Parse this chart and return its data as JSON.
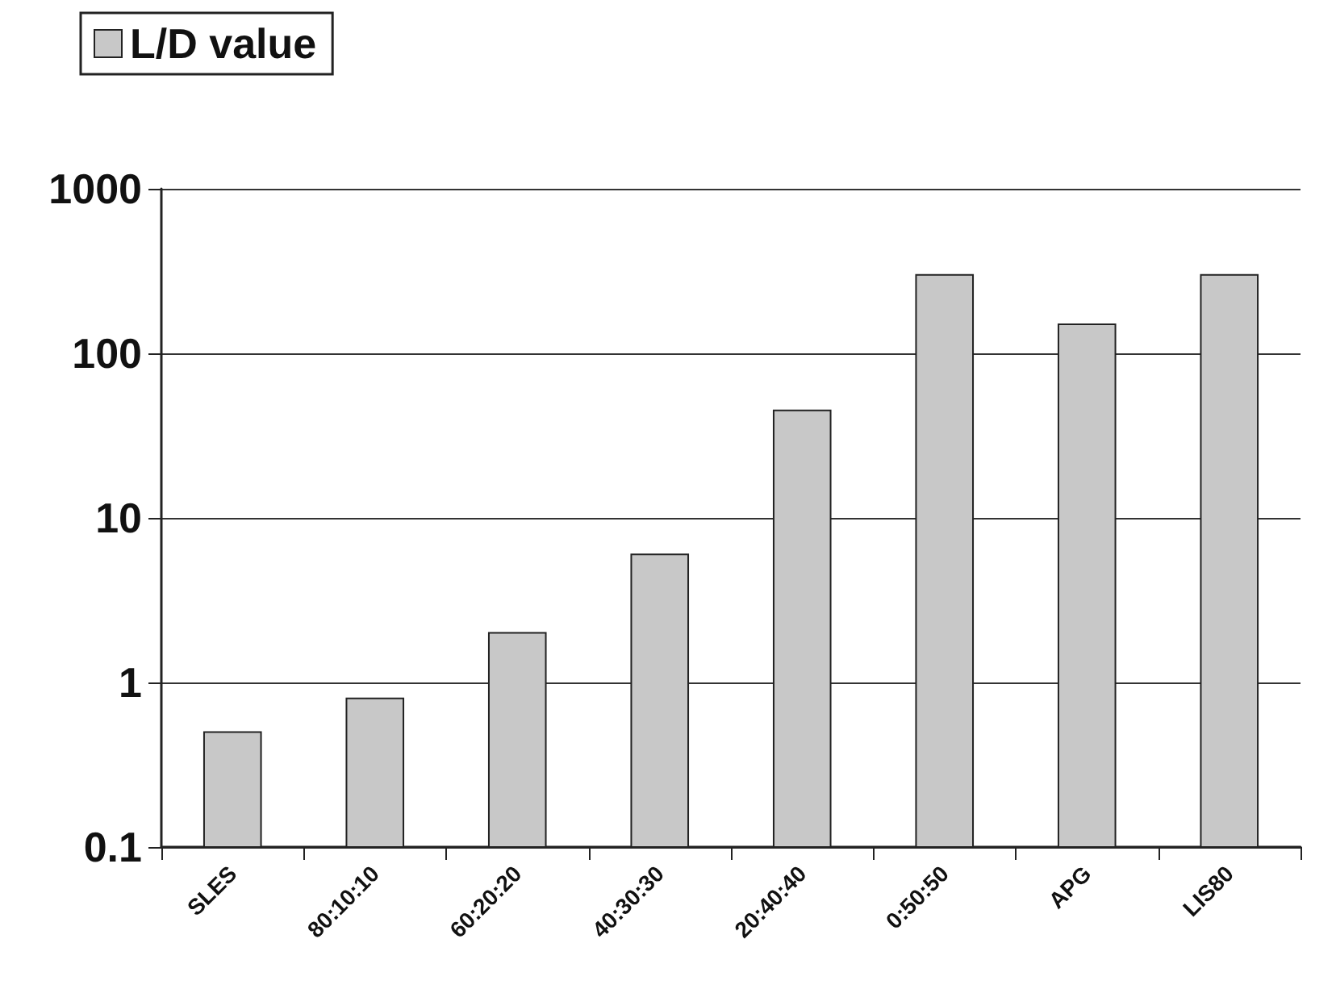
{
  "chart_data": {
    "type": "bar",
    "categories": [
      "SLES",
      "80:10:10",
      "60:20:20",
      "40:30:30",
      "20:40:40",
      "0:50:50",
      "APG",
      "LIS80"
    ],
    "series": [
      {
        "name": "L/D value",
        "color": "#c8c8c8",
        "values": [
          0.5,
          0.8,
          2,
          6,
          45,
          300,
          150,
          300
        ]
      }
    ],
    "ylim": [
      0.1,
      1000
    ],
    "yticks": [
      0.1,
      1,
      10,
      100,
      1000
    ],
    "log": true,
    "grid": "y",
    "legend": "top left"
  }
}
